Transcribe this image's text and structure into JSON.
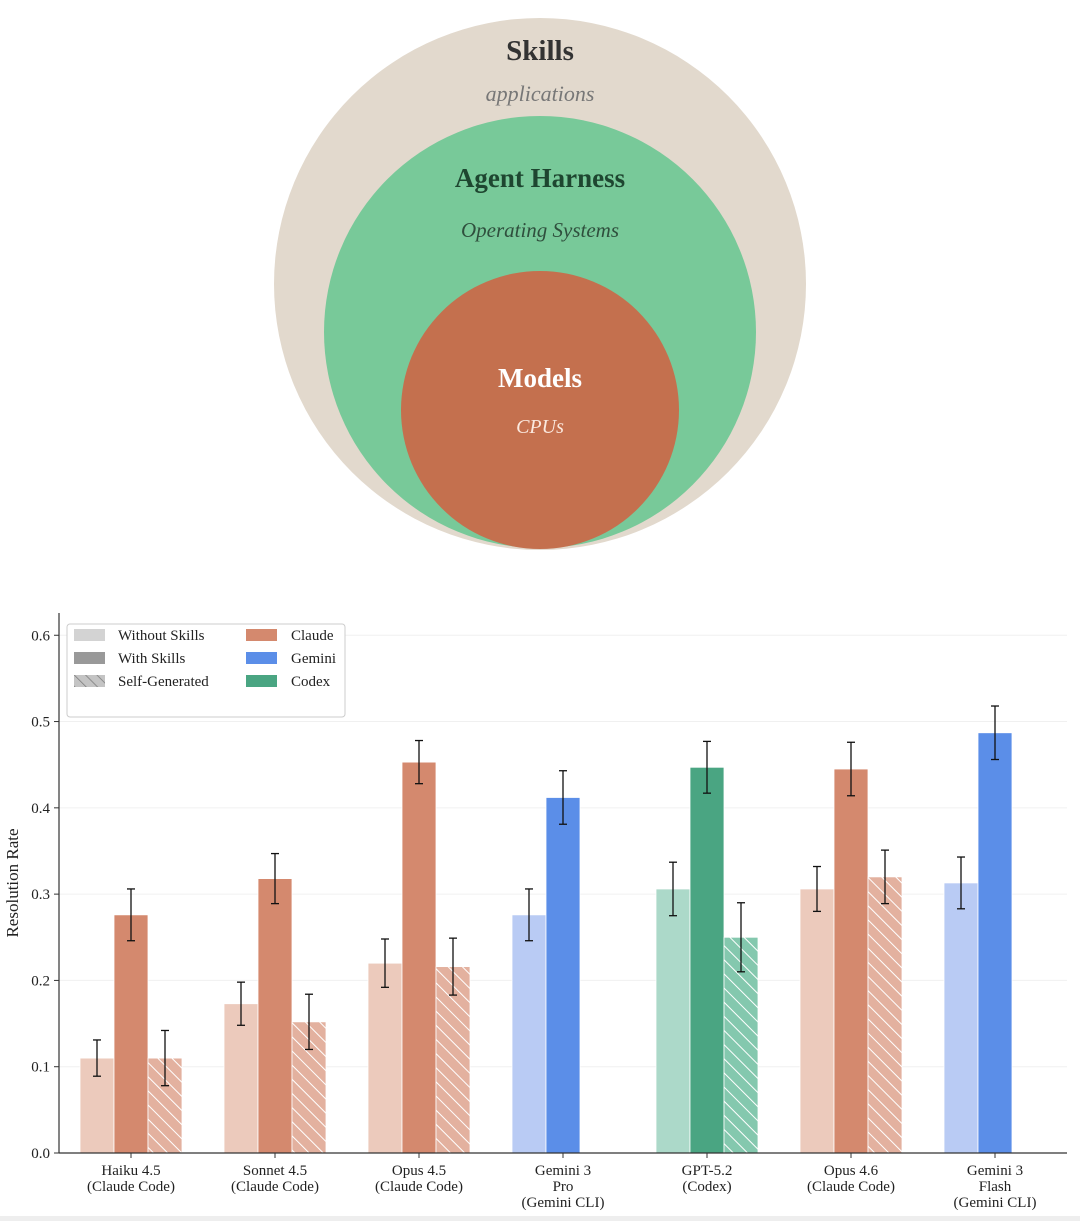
{
  "diagram": {
    "outer": {
      "title": "Skills",
      "subtitle": "applications",
      "color": "#e2d9cd",
      "title_color": "#333333",
      "subtitle_color": "#777777"
    },
    "middle": {
      "title": "Agent Harness",
      "subtitle": "Operating Systems",
      "color": "#78c999",
      "title_color": "#1e4630",
      "subtitle_color": "#2f4f3d"
    },
    "inner": {
      "title": "Models",
      "subtitle": "CPUs",
      "color": "#c4704e",
      "title_color": "#ffffff",
      "subtitle_color": "#fbe9df"
    }
  },
  "legend": {
    "conditions": [
      {
        "label": "Without Skills",
        "style": "light"
      },
      {
        "label": "With Skills",
        "style": "solid"
      },
      {
        "label": "Self-Generated",
        "style": "hatched"
      }
    ],
    "families": [
      {
        "label": "Claude",
        "color": "#d4896e"
      },
      {
        "label": "Gemini",
        "color": "#5b8ee8"
      },
      {
        "label": "Codex",
        "color": "#4aa582"
      }
    ]
  },
  "chart_data": {
    "type": "bar",
    "ylabel": "Resolution Rate",
    "ylim": [
      0,
      0.62
    ],
    "yticks": [
      "0.0",
      "0.1",
      "0.2",
      "0.3",
      "0.4",
      "0.5",
      "0.6"
    ],
    "grid": true,
    "legend_position": "top-left",
    "colors": {
      "claude": {
        "light": "#eccabc",
        "solid": "#d4896e",
        "hatch": "#e3b19f"
      },
      "gemini": {
        "light": "#b9cbf4",
        "solid": "#5b8ee8",
        "hatch": "#9ab6f0"
      },
      "codex": {
        "light": "#acd9c9",
        "solid": "#4aa582",
        "hatch": "#84c8ae"
      }
    },
    "categories": [
      {
        "lines": [
          "Haiku 4.5",
          "(Claude Code)"
        ],
        "family": "claude",
        "bars": [
          {
            "type": "without",
            "value": 0.11,
            "err": 0.021
          },
          {
            "type": "with",
            "value": 0.276,
            "err": 0.03
          },
          {
            "type": "self",
            "value": 0.11,
            "err": 0.032
          }
        ]
      },
      {
        "lines": [
          "Sonnet 4.5",
          "(Claude Code)"
        ],
        "family": "claude",
        "bars": [
          {
            "type": "without",
            "value": 0.173,
            "err": 0.025
          },
          {
            "type": "with",
            "value": 0.318,
            "err": 0.029
          },
          {
            "type": "self",
            "value": 0.152,
            "err": 0.032
          }
        ]
      },
      {
        "lines": [
          "Opus 4.5",
          "(Claude Code)"
        ],
        "family": "claude",
        "bars": [
          {
            "type": "without",
            "value": 0.22,
            "err": 0.028
          },
          {
            "type": "with",
            "value": 0.453,
            "err": 0.025
          },
          {
            "type": "self",
            "value": 0.216,
            "err": 0.033
          }
        ]
      },
      {
        "lines": [
          "Gemini 3",
          "Pro",
          "(Gemini CLI)"
        ],
        "family": "gemini",
        "bars": [
          {
            "type": "without",
            "value": 0.276,
            "err": 0.03
          },
          {
            "type": "with",
            "value": 0.412,
            "err": 0.031
          }
        ]
      },
      {
        "lines": [
          "GPT-5.2",
          "(Codex)"
        ],
        "family": "codex",
        "bars": [
          {
            "type": "without",
            "value": 0.306,
            "err": 0.031
          },
          {
            "type": "with",
            "value": 0.447,
            "err": 0.03
          },
          {
            "type": "self",
            "value": 0.25,
            "err": 0.04
          }
        ]
      },
      {
        "lines": [
          "Opus 4.6",
          "(Claude Code)"
        ],
        "family": "claude",
        "bars": [
          {
            "type": "without",
            "value": 0.306,
            "err": 0.026
          },
          {
            "type": "with",
            "value": 0.445,
            "err": 0.031
          },
          {
            "type": "self",
            "value": 0.32,
            "err": 0.031
          }
        ]
      },
      {
        "lines": [
          "Gemini 3",
          "Flash",
          "(Gemini CLI)"
        ],
        "family": "gemini",
        "bars": [
          {
            "type": "without",
            "value": 0.313,
            "err": 0.03
          },
          {
            "type": "with",
            "value": 0.487,
            "err": 0.031
          }
        ]
      }
    ]
  }
}
